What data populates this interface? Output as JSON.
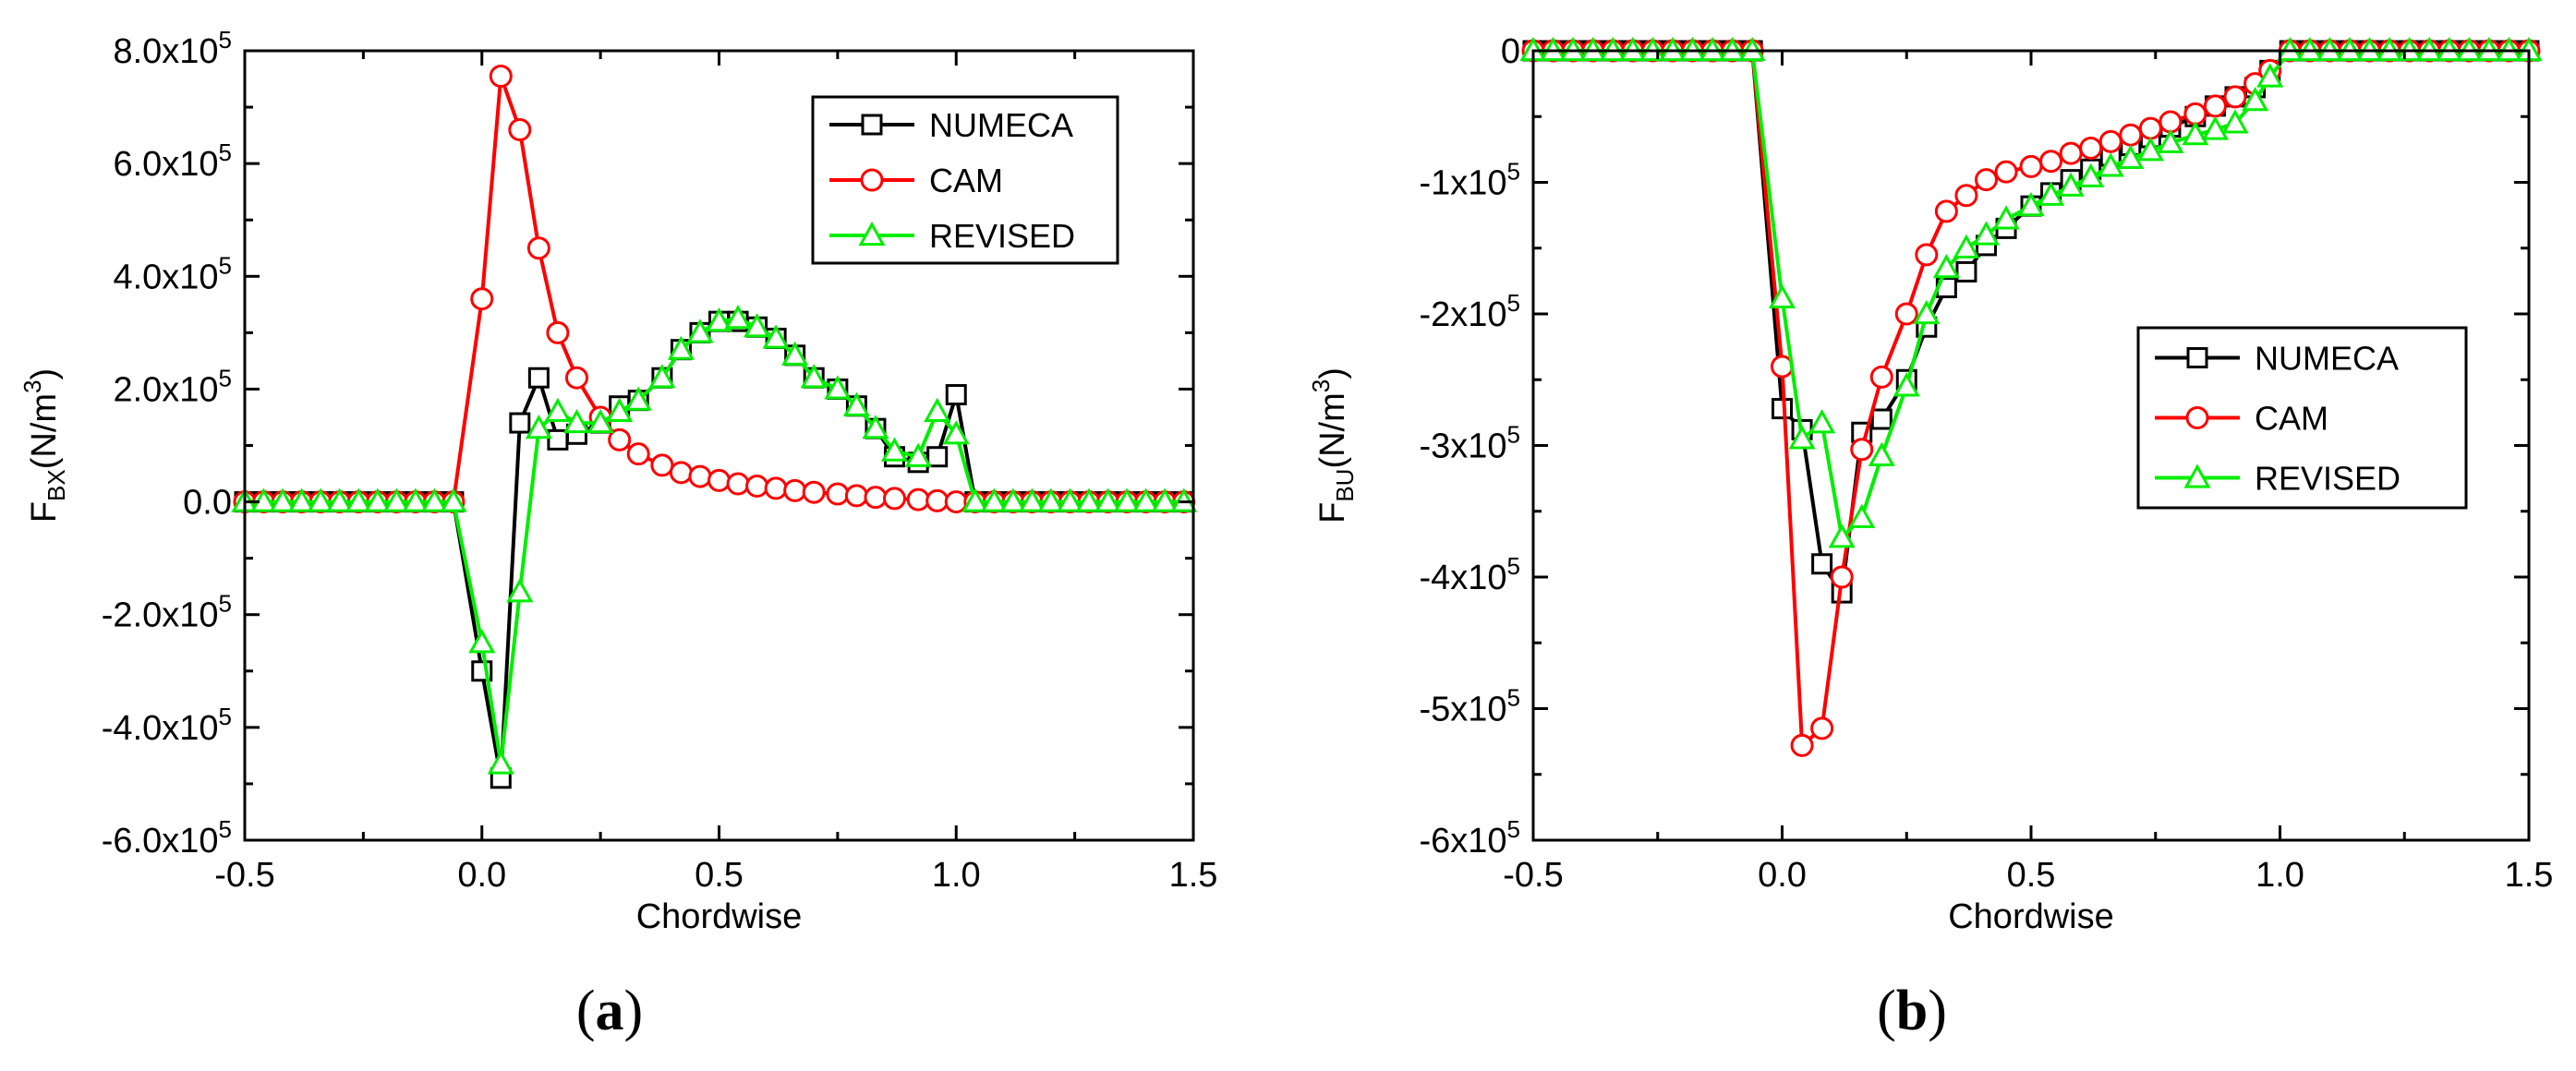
{
  "chart_data": [
    {
      "panel_label": "a",
      "type": "line",
      "title": "",
      "xlabel": "Chordwise",
      "ylabel_main": "F",
      "ylabel_sub": "BX",
      "ylabel_unit": "(N/m",
      "ylabel_sup": "3",
      "ylabel_close": ")",
      "xlim": [
        -0.5,
        1.5
      ],
      "ylim": [
        -600000,
        800000
      ],
      "xticks": [
        -0.5,
        0.0,
        0.5,
        1.0,
        1.5
      ],
      "xtick_labels": [
        "-0.5",
        "0.0",
        "0.5",
        "1.0",
        "1.5"
      ],
      "yticks": [
        -600000,
        -400000,
        -200000,
        0,
        200000,
        400000,
        600000,
        800000
      ],
      "ytick_labels": [
        {
          "mant": "-6.0x10",
          "exp": "5"
        },
        {
          "mant": "-4.0x10",
          "exp": "5"
        },
        {
          "mant": "-2.0x10",
          "exp": "5"
        },
        {
          "mant": "0.0",
          "exp": ""
        },
        {
          "mant": "2.0x10",
          "exp": "5"
        },
        {
          "mant": "4.0x10",
          "exp": "5"
        },
        {
          "mant": "6.0x10",
          "exp": "5"
        },
        {
          "mant": "8.0x10",
          "exp": "5"
        }
      ],
      "legend_position": "top-right",
      "series": [
        {
          "name": "NUMECA",
          "color": "#000000",
          "marker": "square",
          "x": [
            -0.5,
            -0.46,
            -0.42,
            -0.38,
            -0.34,
            -0.3,
            -0.26,
            -0.22,
            -0.18,
            -0.14,
            -0.1,
            -0.06,
            0.0,
            0.04,
            0.08,
            0.12,
            0.16,
            0.2,
            0.25,
            0.29,
            0.33,
            0.38,
            0.42,
            0.46,
            0.5,
            0.54,
            0.58,
            0.62,
            0.66,
            0.7,
            0.75,
            0.79,
            0.83,
            0.87,
            0.92,
            0.96,
            1.0,
            1.04,
            1.08,
            1.12,
            1.16,
            1.2,
            1.24,
            1.28,
            1.32,
            1.36,
            1.4,
            1.44,
            1.48
          ],
          "y": [
            0,
            0,
            0,
            0,
            0,
            0,
            0,
            0,
            0,
            0,
            0,
            0,
            -300000,
            -490000,
            140000,
            220000,
            110000,
            120000,
            140000,
            170000,
            180000,
            220000,
            270000,
            300000,
            320000,
            320000,
            310000,
            290000,
            260000,
            220000,
            200000,
            170000,
            130000,
            80000,
            70000,
            80000,
            190000,
            0,
            0,
            0,
            0,
            0,
            0,
            0,
            0,
            0,
            0,
            0,
            0
          ]
        },
        {
          "name": "CAM",
          "color": "#ff0000",
          "marker": "circle",
          "x": [
            -0.5,
            -0.46,
            -0.42,
            -0.38,
            -0.34,
            -0.3,
            -0.26,
            -0.22,
            -0.18,
            -0.14,
            -0.1,
            -0.06,
            0.0,
            0.04,
            0.08,
            0.12,
            0.16,
            0.2,
            0.25,
            0.29,
            0.33,
            0.38,
            0.42,
            0.46,
            0.5,
            0.54,
            0.58,
            0.62,
            0.66,
            0.7,
            0.75,
            0.79,
            0.83,
            0.87,
            0.92,
            0.96,
            1.0,
            1.04,
            1.08,
            1.12,
            1.16,
            1.2,
            1.24,
            1.28,
            1.32,
            1.36,
            1.4,
            1.44,
            1.48
          ],
          "y": [
            0,
            0,
            0,
            0,
            0,
            0,
            0,
            0,
            0,
            0,
            0,
            0,
            360000,
            755000,
            660000,
            450000,
            300000,
            220000,
            150000,
            110000,
            85000,
            65000,
            52000,
            45000,
            38000,
            32000,
            28000,
            24000,
            20000,
            17000,
            14000,
            11000,
            8000,
            6000,
            4000,
            2000,
            0,
            0,
            0,
            0,
            0,
            0,
            0,
            0,
            0,
            0,
            0,
            0,
            0
          ]
        },
        {
          "name": "REVISED",
          "color": "#00ee00",
          "marker": "triangle",
          "x": [
            -0.5,
            -0.46,
            -0.42,
            -0.38,
            -0.34,
            -0.3,
            -0.26,
            -0.22,
            -0.18,
            -0.14,
            -0.1,
            -0.06,
            0.0,
            0.04,
            0.08,
            0.12,
            0.16,
            0.2,
            0.25,
            0.29,
            0.33,
            0.38,
            0.42,
            0.46,
            0.5,
            0.54,
            0.58,
            0.62,
            0.66,
            0.7,
            0.75,
            0.79,
            0.83,
            0.87,
            0.92,
            0.96,
            1.0,
            1.04,
            1.08,
            1.12,
            1.16,
            1.2,
            1.24,
            1.28,
            1.32,
            1.36,
            1.4,
            1.44,
            1.48
          ],
          "y": [
            0,
            0,
            0,
            0,
            0,
            0,
            0,
            0,
            0,
            0,
            0,
            0,
            -250000,
            -465000,
            -160000,
            130000,
            160000,
            140000,
            140000,
            160000,
            180000,
            220000,
            270000,
            300000,
            320000,
            325000,
            310000,
            290000,
            260000,
            220000,
            200000,
            170000,
            130000,
            90000,
            80000,
            160000,
            120000,
            0,
            0,
            0,
            0,
            0,
            0,
            0,
            0,
            0,
            0,
            0,
            0
          ]
        }
      ]
    },
    {
      "panel_label": "b",
      "type": "line",
      "title": "",
      "xlabel": "Chordwise",
      "ylabel_main": "F",
      "ylabel_sub": "BU",
      "ylabel_unit": "(N/m",
      "ylabel_sup": "3",
      "ylabel_close": ")",
      "xlim": [
        -0.5,
        1.5
      ],
      "ylim": [
        -600000,
        0
      ],
      "xticks": [
        -0.5,
        0.0,
        0.5,
        1.0,
        1.5
      ],
      "xtick_labels": [
        "-0.5",
        "0.0",
        "0.5",
        "1.0",
        "1.5"
      ],
      "yticks": [
        -600000,
        -500000,
        -400000,
        -300000,
        -200000,
        -100000,
        0
      ],
      "ytick_labels": [
        {
          "mant": "-6x10",
          "exp": "5"
        },
        {
          "mant": "-5x10",
          "exp": "5"
        },
        {
          "mant": "-4x10",
          "exp": "5"
        },
        {
          "mant": "-3x10",
          "exp": "5"
        },
        {
          "mant": "-2x10",
          "exp": "5"
        },
        {
          "mant": "-1x10",
          "exp": "5"
        },
        {
          "mant": "0",
          "exp": ""
        }
      ],
      "legend_position": "center-right",
      "series": [
        {
          "name": "NUMECA",
          "color": "#000000",
          "marker": "square",
          "x": [
            -0.5,
            -0.46,
            -0.42,
            -0.38,
            -0.34,
            -0.3,
            -0.26,
            -0.22,
            -0.18,
            -0.14,
            -0.1,
            -0.06,
            0.0,
            0.04,
            0.08,
            0.12,
            0.16,
            0.2,
            0.25,
            0.29,
            0.33,
            0.37,
            0.41,
            0.45,
            0.5,
            0.54,
            0.58,
            0.62,
            0.66,
            0.7,
            0.74,
            0.78,
            0.83,
            0.87,
            0.91,
            0.95,
            0.98,
            1.02,
            1.06,
            1.1,
            1.14,
            1.18,
            1.22,
            1.26,
            1.3,
            1.34,
            1.38,
            1.42,
            1.46,
            1.5
          ],
          "y": [
            0,
            0,
            0,
            0,
            0,
            0,
            0,
            0,
            0,
            0,
            0,
            0,
            -272000,
            -288000,
            -390000,
            -412000,
            -290000,
            -280000,
            -250000,
            -210000,
            -180000,
            -168000,
            -148000,
            -135000,
            -118000,
            -108000,
            -98000,
            -90000,
            -80000,
            -72000,
            -66000,
            -58000,
            -50000,
            -42000,
            -35000,
            -28000,
            -15000,
            0,
            0,
            0,
            0,
            0,
            0,
            0,
            0,
            0,
            0,
            0,
            0,
            0
          ]
        },
        {
          "name": "CAM",
          "color": "#ff0000",
          "marker": "circle",
          "x": [
            -0.5,
            -0.46,
            -0.42,
            -0.38,
            -0.34,
            -0.3,
            -0.26,
            -0.22,
            -0.18,
            -0.14,
            -0.1,
            -0.06,
            0.0,
            0.04,
            0.08,
            0.12,
            0.16,
            0.2,
            0.25,
            0.29,
            0.33,
            0.37,
            0.41,
            0.45,
            0.5,
            0.54,
            0.58,
            0.62,
            0.66,
            0.7,
            0.74,
            0.78,
            0.83,
            0.87,
            0.91,
            0.95,
            0.98,
            1.02,
            1.06,
            1.1,
            1.14,
            1.18,
            1.22,
            1.26,
            1.3,
            1.34,
            1.38,
            1.42,
            1.46,
            1.5
          ],
          "y": [
            0,
            0,
            0,
            0,
            0,
            0,
            0,
            0,
            0,
            0,
            0,
            0,
            -240000,
            -528000,
            -515000,
            -400000,
            -303000,
            -248000,
            -200000,
            -155000,
            -122000,
            -110000,
            -98000,
            -92000,
            -88000,
            -84000,
            -78000,
            -74000,
            -69000,
            -64000,
            -59000,
            -54000,
            -48000,
            -42000,
            -35000,
            -25000,
            -15000,
            0,
            0,
            0,
            0,
            0,
            0,
            0,
            0,
            0,
            0,
            0,
            0,
            0
          ]
        },
        {
          "name": "REVISED",
          "color": "#00ee00",
          "marker": "triangle",
          "x": [
            -0.5,
            -0.46,
            -0.42,
            -0.38,
            -0.34,
            -0.3,
            -0.26,
            -0.22,
            -0.18,
            -0.14,
            -0.1,
            -0.06,
            0.0,
            0.04,
            0.08,
            0.12,
            0.16,
            0.2,
            0.25,
            0.29,
            0.33,
            0.37,
            0.41,
            0.45,
            0.5,
            0.54,
            0.58,
            0.62,
            0.66,
            0.7,
            0.74,
            0.78,
            0.83,
            0.87,
            0.91,
            0.95,
            0.98,
            1.02,
            1.06,
            1.1,
            1.14,
            1.18,
            1.22,
            1.26,
            1.3,
            1.34,
            1.38,
            1.42,
            1.46,
            1.5
          ],
          "y": [
            0,
            0,
            0,
            0,
            0,
            0,
            0,
            0,
            0,
            0,
            0,
            0,
            -188000,
            -295000,
            -283000,
            -370000,
            -355000,
            -308000,
            -255000,
            -200000,
            -165000,
            -150000,
            -140000,
            -128000,
            -118000,
            -110000,
            -103000,
            -96000,
            -88000,
            -82000,
            -76000,
            -70000,
            -64000,
            -60000,
            -55000,
            -38000,
            -20000,
            0,
            0,
            0,
            0,
            0,
            0,
            0,
            0,
            0,
            0,
            0,
            0,
            0
          ]
        }
      ]
    }
  ]
}
